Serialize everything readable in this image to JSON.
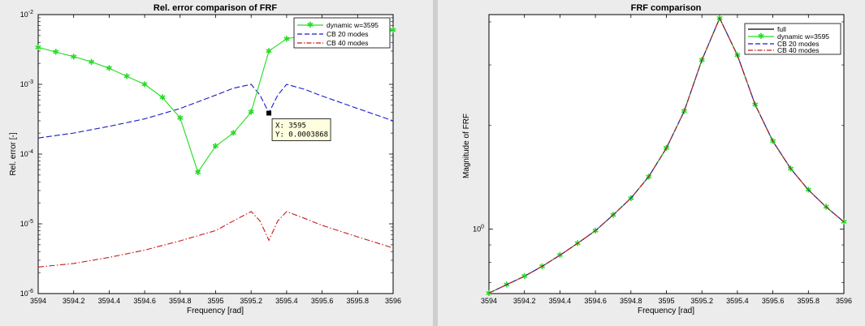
{
  "colors": {
    "figure_bg": "#ececec",
    "axes_bg": "#ffffff",
    "full": "#000000",
    "dynamic": "#22dd22",
    "cb20": "#1a1acc",
    "cb40": "#cc1a1a",
    "divider": "#cfcfcf"
  },
  "chart_data": [
    {
      "type": "line",
      "title": "Rel. error comparison of FRF",
      "xlabel": "Frequency [rad]",
      "ylabel": "Rel. error [-]",
      "xlim": [
        3594,
        3596
      ],
      "ylim": [
        1e-06,
        0.01
      ],
      "yscale": "log",
      "grid": false,
      "legend_position": "top-right",
      "x_ticks": [
        "3594",
        "3594.2",
        "3594.4",
        "3594.6",
        "3594.8",
        "3595",
        "3595.2",
        "3595.4",
        "3595.6",
        "3595.8",
        "3596"
      ],
      "x_tick_values": [
        3594,
        3594.2,
        3594.4,
        3594.6,
        3594.8,
        3595,
        3595.2,
        3595.4,
        3595.6,
        3595.8,
        3596
      ],
      "y_ticks": [
        {
          "value": 0.01,
          "base": "10",
          "exp": "-2"
        },
        {
          "value": 0.001,
          "base": "10",
          "exp": "-3"
        },
        {
          "value": 0.0001,
          "base": "10",
          "exp": "-4"
        },
        {
          "value": 1e-05,
          "base": "10",
          "exp": "-5"
        },
        {
          "value": 1e-06,
          "base": "10",
          "exp": "-6"
        }
      ],
      "series": [
        {
          "name": "dynamic w=3595",
          "style": "solid-star",
          "color": "#22dd22",
          "x": [
            3594,
            3594.1,
            3594.2,
            3594.3,
            3594.4,
            3594.5,
            3594.6,
            3594.7,
            3594.8,
            3594.9,
            3595,
            3595.1,
            3595.2,
            3595.3,
            3595.4,
            3595.5,
            3595.6,
            3595.7,
            3595.8,
            3595.9,
            3596
          ],
          "y": [
            0.0034,
            0.0029,
            0.0025,
            0.0021,
            0.0017,
            0.0013,
            0.001,
            0.00065,
            0.00033,
            5.5e-05,
            0.00013,
            0.0002,
            0.0004,
            0.003,
            0.0045,
            0.005,
            0.0053,
            0.0055,
            0.0057,
            0.0058,
            0.006
          ]
        },
        {
          "name": "CB 20 modes",
          "style": "dashed",
          "color": "#1a1acc",
          "x": [
            3594,
            3594.2,
            3594.4,
            3594.6,
            3594.8,
            3595,
            3595.1,
            3595.2,
            3595.25,
            3595.3,
            3595.35,
            3595.4,
            3595.5,
            3595.6,
            3595.8,
            3596
          ],
          "y": [
            0.00017,
            0.0002,
            0.00025,
            0.00032,
            0.00045,
            0.0007,
            0.00088,
            0.001,
            0.0007,
            0.00039,
            0.0007,
            0.001,
            0.00085,
            0.00068,
            0.00045,
            0.0003
          ]
        },
        {
          "name": "CB 40 modes",
          "style": "dashdot",
          "color": "#cc1a1a",
          "x": [
            3594,
            3594.2,
            3594.4,
            3594.6,
            3594.8,
            3595,
            3595.1,
            3595.2,
            3595.25,
            3595.3,
            3595.35,
            3595.4,
            3595.5,
            3595.6,
            3595.8,
            3596
          ],
          "y": [
            2.4e-06,
            2.7e-06,
            3.3e-06,
            4.2e-06,
            5.7e-06,
            8e-06,
            1.1e-05,
            1.5e-05,
            1.1e-05,
            5.8e-06,
            1.1e-05,
            1.5e-05,
            1.2e-05,
            9.5e-06,
            6.5e-06,
            4.5e-06
          ]
        }
      ],
      "datatip": {
        "x": 3595.3,
        "y": 0.0003868,
        "lines": [
          "X: 3595",
          "Y: 0.0003868"
        ]
      }
    },
    {
      "type": "line",
      "title": "FRF comparison",
      "xlabel": "Frequency [rad]",
      "ylabel": "Magnitude of FRF",
      "xlim": [
        3594,
        3596
      ],
      "ylim": [
        0.65,
        4.2
      ],
      "yscale": "log",
      "grid": false,
      "legend_position": "top-right",
      "x_ticks": [
        "3594",
        "3594.2",
        "3594.4",
        "3594.6",
        "3594.8",
        "3595",
        "3595.2",
        "3595.4",
        "3595.6",
        "3595.8",
        "3596"
      ],
      "x_tick_values": [
        3594,
        3594.2,
        3594.4,
        3594.6,
        3594.8,
        3595,
        3595.2,
        3595.4,
        3595.6,
        3595.8,
        3596
      ],
      "y_ticks": [
        {
          "value": 1,
          "base": "10",
          "exp": "0"
        }
      ],
      "series": [
        {
          "name": "full",
          "style": "solid",
          "color": "#000000",
          "x": [
            3594,
            3594.1,
            3594.2,
            3594.3,
            3594.4,
            3594.5,
            3594.6,
            3594.7,
            3594.8,
            3594.9,
            3595,
            3595.1,
            3595.2,
            3595.3,
            3595.4,
            3595.5,
            3595.6,
            3595.7,
            3595.8,
            3595.9,
            3596
          ],
          "y": [
            0.652,
            0.69,
            0.73,
            0.78,
            0.84,
            0.91,
            0.99,
            1.1,
            1.23,
            1.42,
            1.72,
            2.2,
            3.1,
            4.1,
            3.2,
            2.3,
            1.8,
            1.5,
            1.3,
            1.16,
            1.05
          ]
        },
        {
          "name": "dynamic w=3595",
          "style": "solid-star",
          "color": "#22dd22",
          "x": [
            3594,
            3594.1,
            3594.2,
            3594.3,
            3594.4,
            3594.5,
            3594.6,
            3594.7,
            3594.8,
            3594.9,
            3595,
            3595.1,
            3595.2,
            3595.3,
            3595.4,
            3595.5,
            3595.6,
            3595.7,
            3595.8,
            3595.9,
            3596
          ],
          "y": [
            0.652,
            0.69,
            0.73,
            0.78,
            0.84,
            0.91,
            0.99,
            1.1,
            1.23,
            1.42,
            1.72,
            2.2,
            3.1,
            4.1,
            3.2,
            2.3,
            1.8,
            1.5,
            1.3,
            1.16,
            1.05
          ]
        },
        {
          "name": "CB 20 modes",
          "style": "dashed",
          "color": "#1a1acc",
          "x": [
            3594,
            3594.1,
            3594.2,
            3594.3,
            3594.4,
            3594.5,
            3594.6,
            3594.7,
            3594.8,
            3594.9,
            3595,
            3595.1,
            3595.2,
            3595.3,
            3595.4,
            3595.5,
            3595.6,
            3595.7,
            3595.8,
            3595.9,
            3596
          ],
          "y": [
            0.652,
            0.69,
            0.73,
            0.78,
            0.84,
            0.91,
            0.99,
            1.1,
            1.23,
            1.42,
            1.72,
            2.2,
            3.1,
            4.1,
            3.2,
            2.3,
            1.8,
            1.5,
            1.3,
            1.16,
            1.05
          ]
        },
        {
          "name": "CB 40 modes",
          "style": "dashdot",
          "color": "#cc1a1a",
          "x": [
            3594,
            3594.1,
            3594.2,
            3594.3,
            3594.4,
            3594.5,
            3594.6,
            3594.7,
            3594.8,
            3594.9,
            3595,
            3595.1,
            3595.2,
            3595.3,
            3595.4,
            3595.5,
            3595.6,
            3595.7,
            3595.8,
            3595.9,
            3596
          ],
          "y": [
            0.652,
            0.69,
            0.73,
            0.78,
            0.84,
            0.91,
            0.99,
            1.1,
            1.23,
            1.42,
            1.72,
            2.2,
            3.1,
            4.1,
            3.2,
            2.3,
            1.8,
            1.5,
            1.3,
            1.16,
            1.05
          ]
        }
      ]
    }
  ]
}
